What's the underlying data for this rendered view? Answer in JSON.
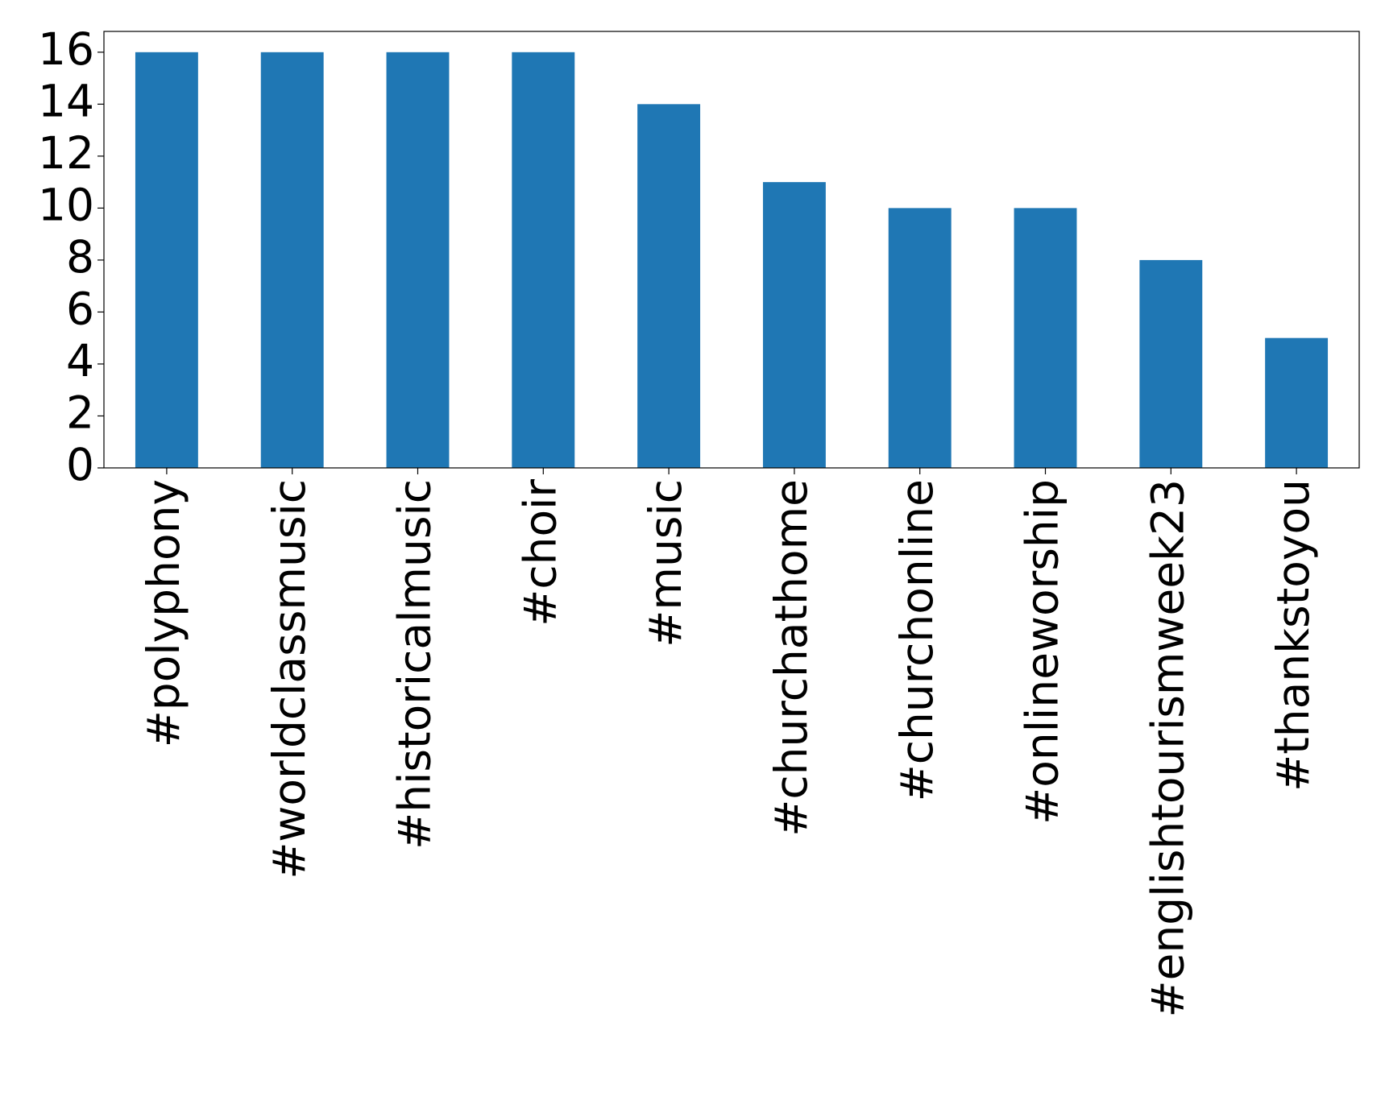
{
  "chart_data": {
    "type": "bar",
    "categories": [
      "#polyphony",
      "#worldclassmusic",
      "#historicalmusic",
      "#choir",
      "#music",
      "#churchathome",
      "#churchonline",
      "#onlineworship",
      "#englishtourismweek23",
      "#thankstoyou"
    ],
    "values": [
      16,
      16,
      16,
      16,
      14,
      11,
      10,
      10,
      8,
      5
    ],
    "color": "#1f77b4",
    "ylim": [
      0,
      16.8
    ],
    "yticks": [
      0,
      2,
      4,
      6,
      8,
      10,
      12,
      14,
      16
    ],
    "grid": false
  }
}
